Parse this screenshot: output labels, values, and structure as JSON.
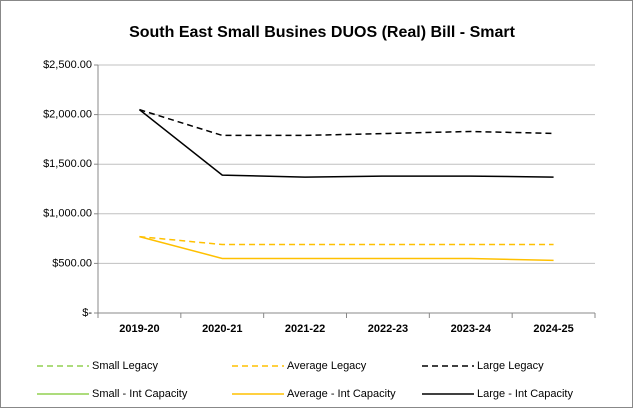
{
  "chart_data": {
    "type": "line",
    "title": "South East Small Busines DUOS (Real) Bill - Smart",
    "categories": [
      "2019-20",
      "2020-21",
      "2021-22",
      "2022-23",
      "2023-24",
      "2024-25"
    ],
    "series": [
      {
        "name": "Small Legacy",
        "color": "#92d050",
        "style": "dashed",
        "values": [
          null,
          null,
          null,
          null,
          null,
          null
        ]
      },
      {
        "name": "Average Legacy",
        "color": "#ffc000",
        "style": "dashed",
        "values": [
          770,
          690,
          690,
          690,
          690,
          690
        ]
      },
      {
        "name": "Large Legacy",
        "color": "#000000",
        "style": "dashed",
        "values": [
          2050,
          1790,
          1790,
          1810,
          1830,
          1810
        ]
      },
      {
        "name": "Small - Int Capacity",
        "color": "#92d050",
        "style": "solid",
        "values": [
          null,
          null,
          null,
          null,
          null,
          null
        ]
      },
      {
        "name": "Average - Int Capacity",
        "color": "#ffc000",
        "style": "solid",
        "values": [
          770,
          550,
          550,
          550,
          550,
          530
        ]
      },
      {
        "name": "Large - Int Capacity",
        "color": "#000000",
        "style": "solid",
        "values": [
          2050,
          1390,
          1370,
          1380,
          1380,
          1370
        ]
      }
    ],
    "ylim": [
      0,
      2500
    ],
    "yticks": [
      {
        "value": 0,
        "label": "$-"
      },
      {
        "value": 500,
        "label": "$500.00"
      },
      {
        "value": 1000,
        "label": "$1,000.00"
      },
      {
        "value": 1500,
        "label": "$1,500.00"
      },
      {
        "value": 2000,
        "label": "$2,000.00"
      },
      {
        "value": 2500,
        "label": "$2,500.00"
      }
    ],
    "grid": true,
    "legend": "bottom"
  }
}
